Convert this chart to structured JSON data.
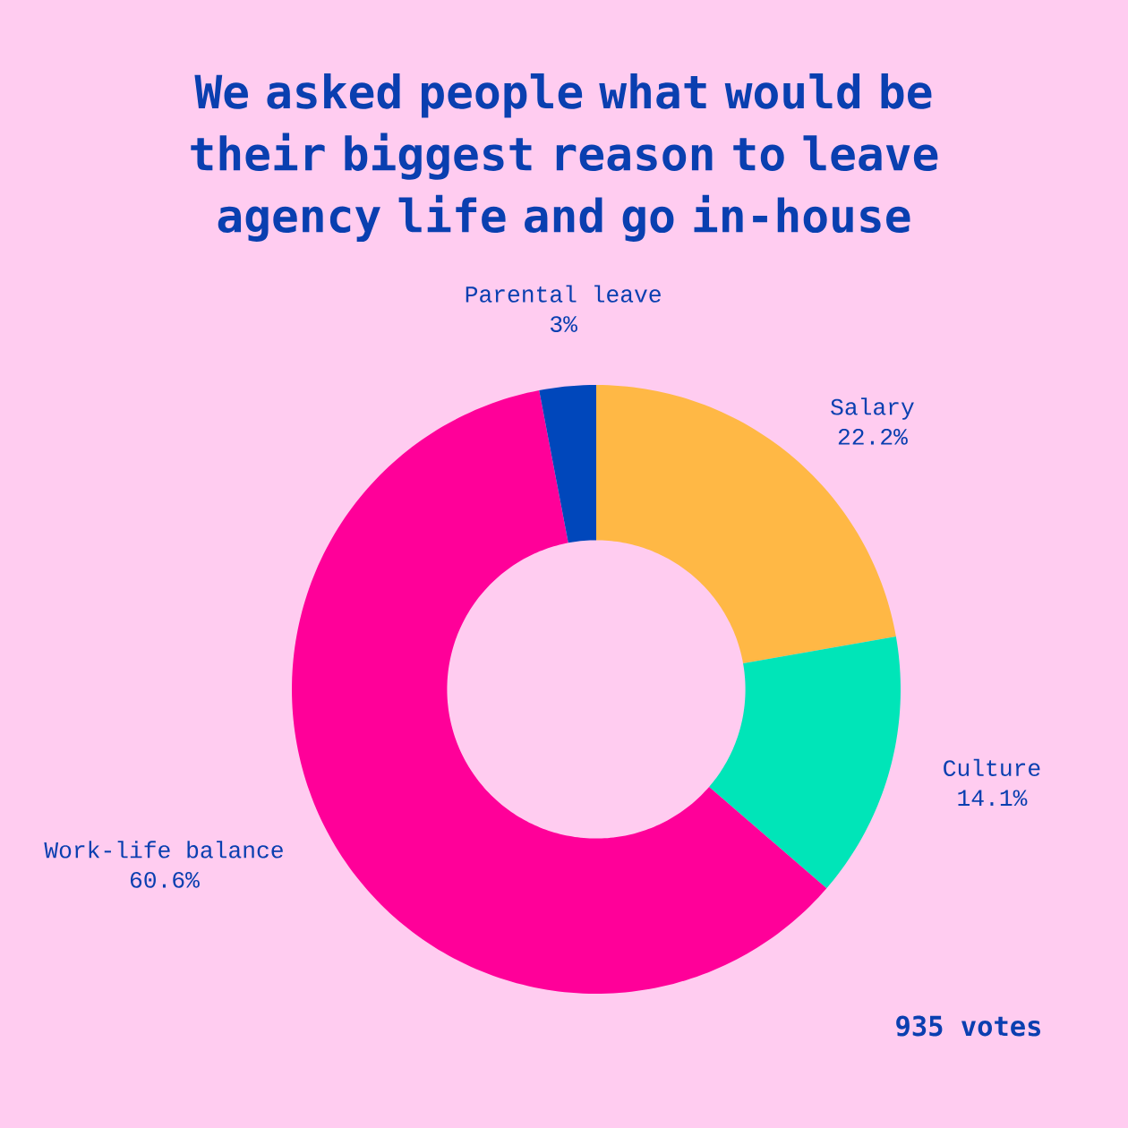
{
  "chart_data": {
    "type": "donut",
    "title": "We asked people what would be their biggest reason to leave agency life and go in-house",
    "categories": [
      "Salary",
      "Culture",
      "Work-life balance",
      "Parental leave"
    ],
    "values": [
      22.2,
      14.1,
      60.6,
      3
    ],
    "colors": [
      "#ffb845",
      "#00e5b8",
      "#ff0099",
      "#0047bb"
    ],
    "value_labels": [
      "22.2%",
      "14.1%",
      "60.6%",
      "3%"
    ],
    "annotations": [
      "935 votes"
    ]
  }
}
